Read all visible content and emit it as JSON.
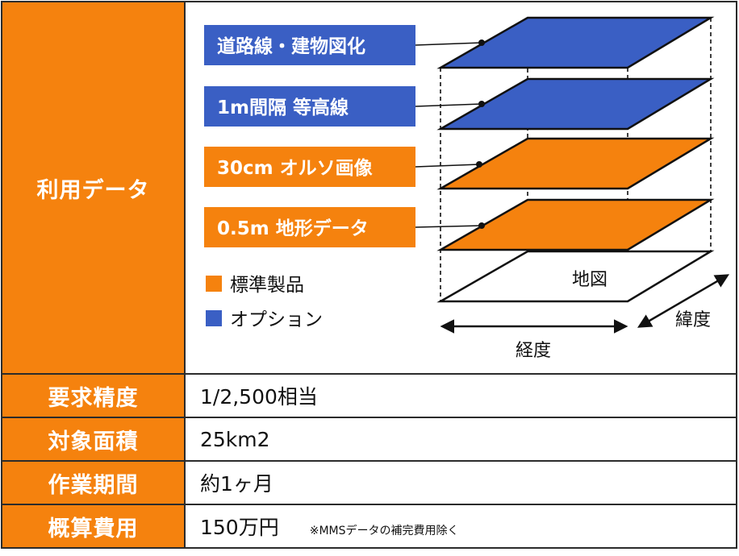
{
  "main_label": "利用データ",
  "layers": [
    {
      "label": "道路線・建物図化",
      "type": "option"
    },
    {
      "label": "1m間隔 等高線",
      "type": "option"
    },
    {
      "label": "30cm オルソ画像",
      "type": "standard"
    },
    {
      "label": "0.5m 地形データ",
      "type": "standard"
    }
  ],
  "legend": {
    "standard": "標準製品",
    "option": "オプション"
  },
  "axes": {
    "base": "地図",
    "longitude": "経度",
    "latitude": "緯度"
  },
  "rows": [
    {
      "key": "要求精度",
      "value": "1/2,500相当",
      "note": ""
    },
    {
      "key": "対象面積",
      "value": "25km2",
      "note": ""
    },
    {
      "key": "作業期間",
      "value": "約1ヶ月",
      "note": ""
    },
    {
      "key": "概算費用",
      "value": "150万円",
      "note": "※MMSデータの補完費用除く"
    }
  ],
  "colors": {
    "standard": "#f5820e",
    "option": "#3a5fc4",
    "border": "#2b2b2b"
  }
}
